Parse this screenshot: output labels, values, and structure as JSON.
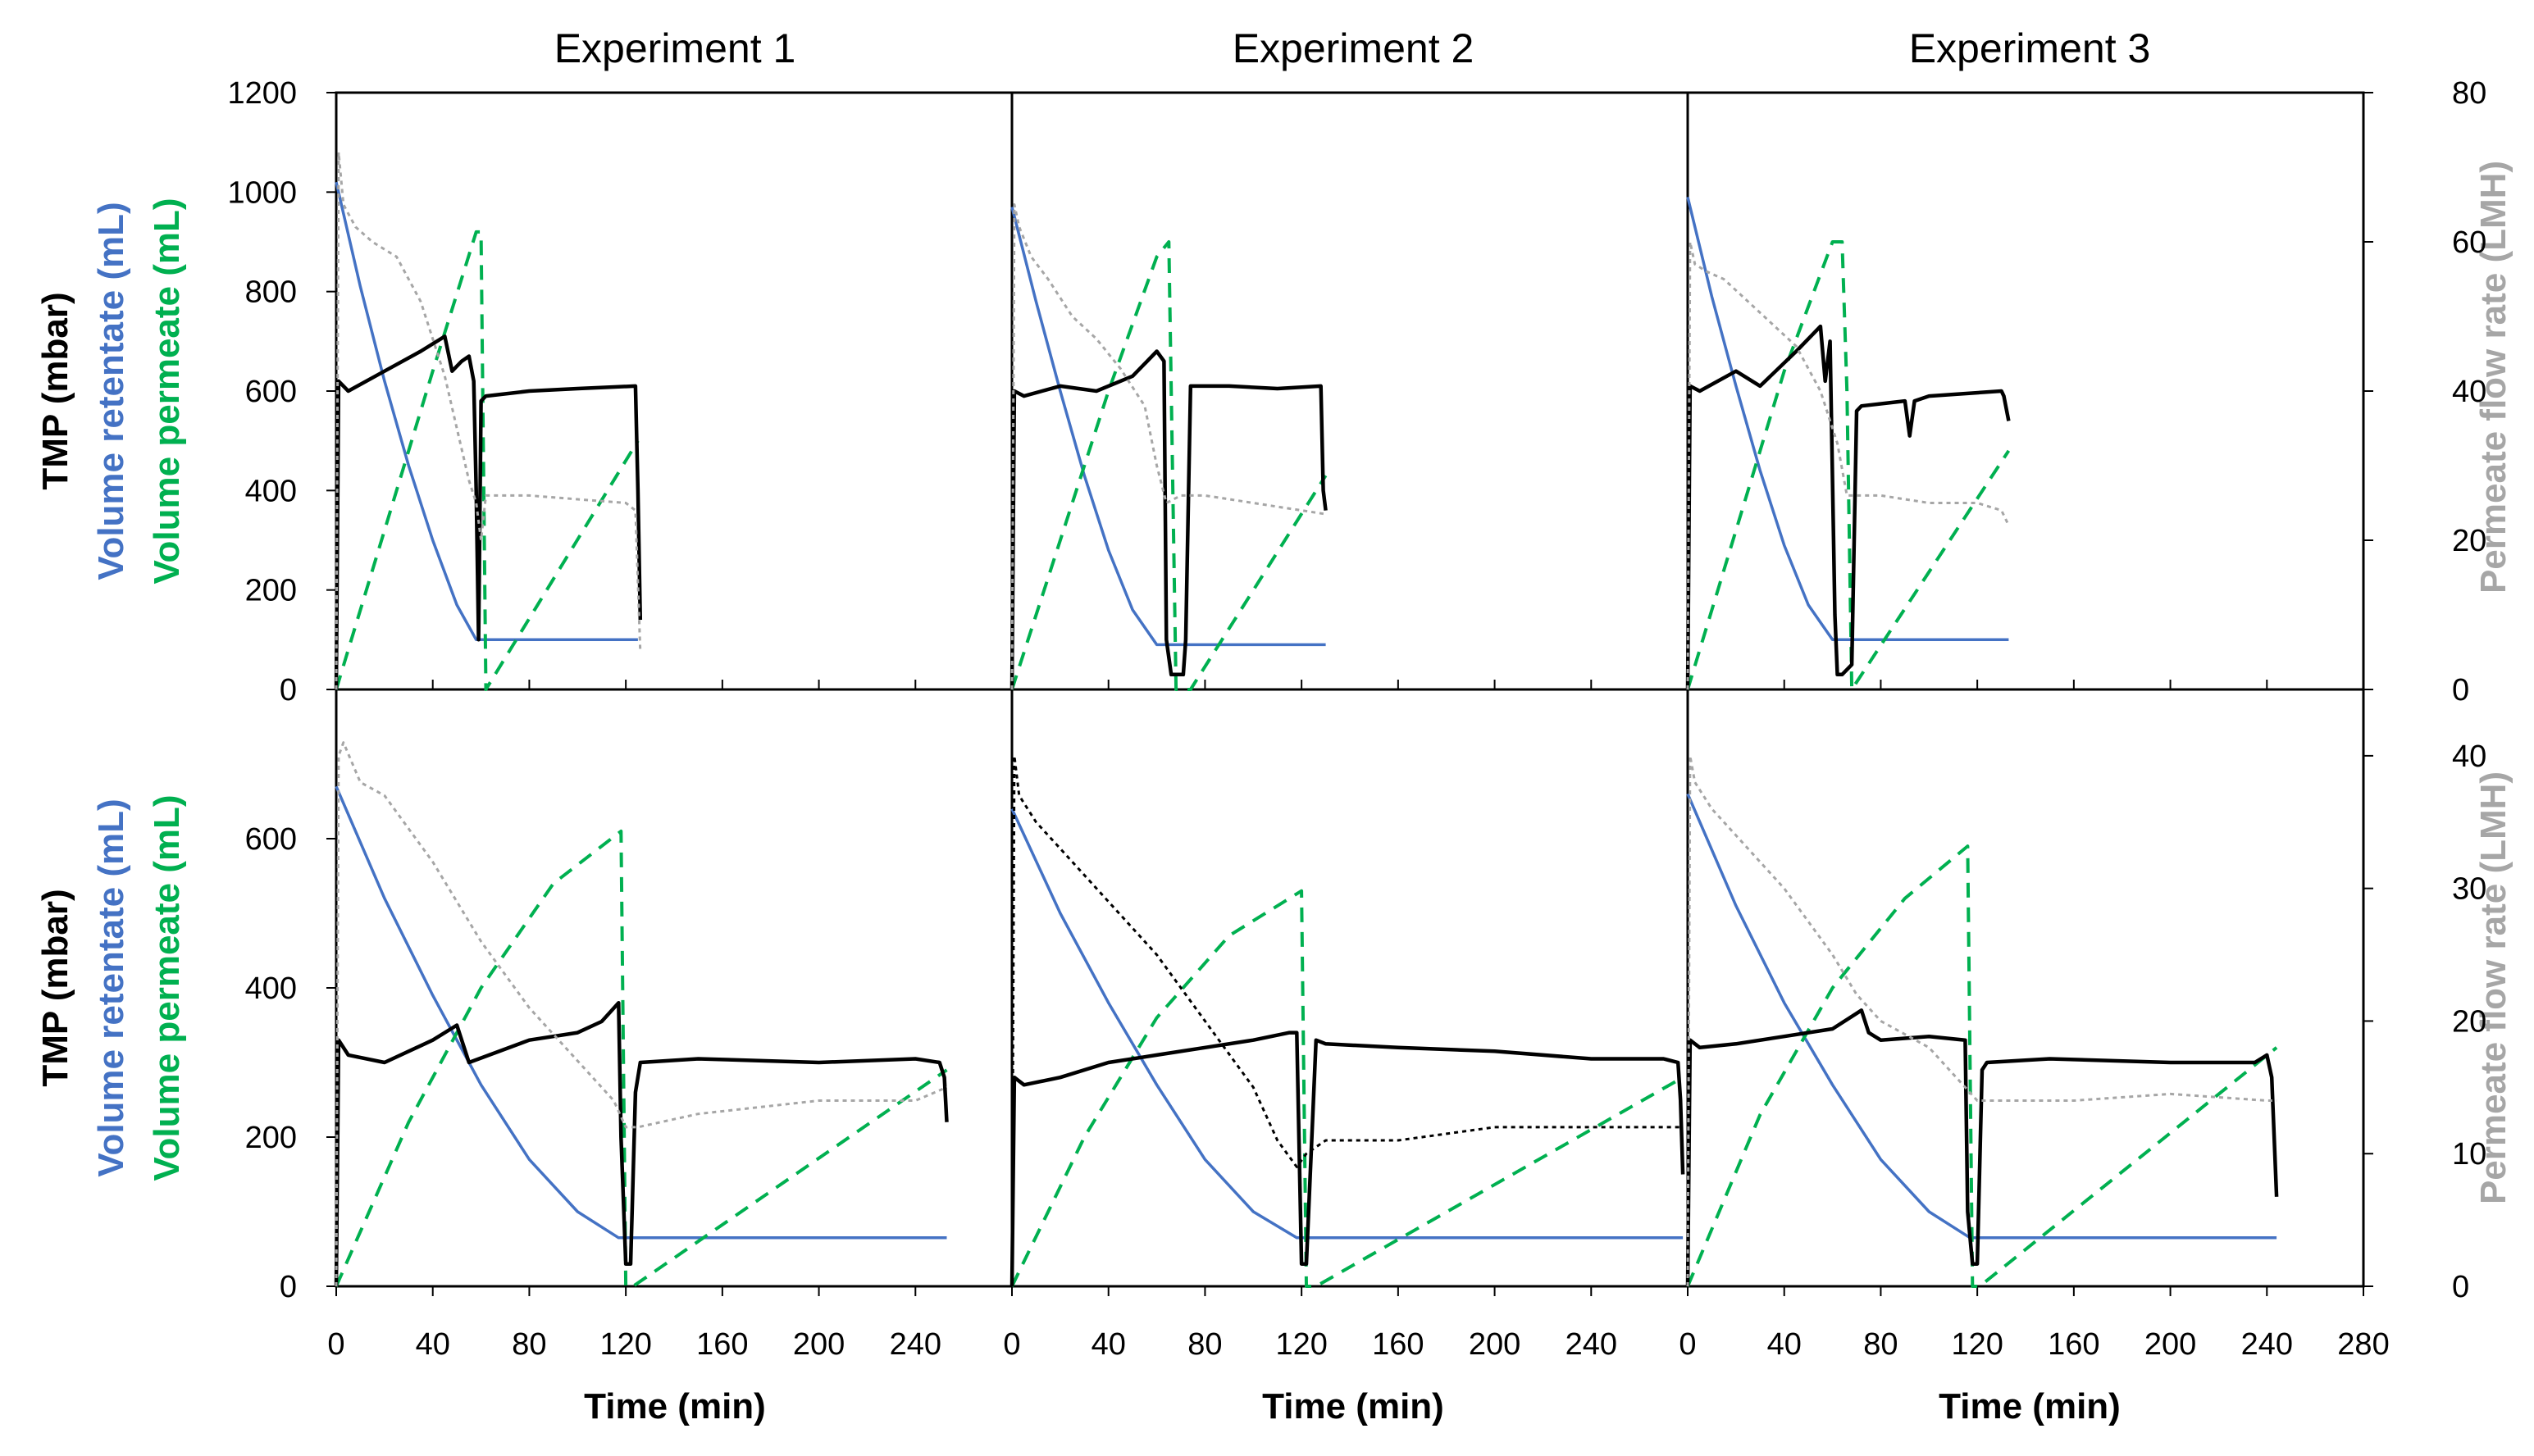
{
  "colors": {
    "tmp": "#000000",
    "retentate": "#4472C4",
    "permeate_volume": "#00B050",
    "flow_rate": "#A6A6A6"
  },
  "chart_data": {
    "type": "line",
    "layout": "2x3 grid",
    "column_titles": [
      "Experiment 1",
      "Experiment 2",
      "Experiment 3"
    ],
    "xlabel": "Time (min)",
    "xlim": [
      0,
      280
    ],
    "xticks": [
      0,
      40,
      80,
      120,
      160,
      200,
      240,
      280
    ],
    "xtick_labels": [
      "0",
      "40",
      "80",
      "120",
      "160",
      "200",
      "240"
    ],
    "last_xtick_label": "280",
    "rows": [
      {
        "name": "top",
        "ylabel_left": {
          "tmp": "TMP (mbar)",
          "retentate": "Volume retentate (mL)",
          "permeate": "Volume permeate (mL)"
        },
        "ylim_left": [
          0,
          1200
        ],
        "yticks_left": [
          "0",
          "200",
          "400",
          "600",
          "800",
          "1000",
          "1200"
        ],
        "ylabel_right": "Permeate flow rate (LMH)",
        "ylim_right": [
          0,
          80
        ],
        "yticks_right": [
          "0",
          "20",
          "40",
          "60",
          "80"
        ]
      },
      {
        "name": "bottom",
        "ylabel_left": {
          "tmp": "TMP (mbar)",
          "retentate": "Volume retentate (mL)",
          "permeate": "Volume permeate (mL)"
        },
        "ylim_left": [
          0,
          800
        ],
        "yticks_left": [
          "0",
          "200",
          "400",
          "600"
        ],
        "ylabel_right": "Permeate flow rate (LMH)",
        "ylim_right": [
          0,
          45
        ],
        "yticks_right": [
          "0",
          "10",
          "20",
          "30",
          "40"
        ]
      }
    ],
    "panels": [
      {
        "row": 0,
        "col": 0,
        "series": [
          {
            "name": "Volume retentate",
            "axis": "left",
            "style": "solid-blue",
            "x": [
              0,
              10,
              20,
              30,
              40,
              50,
              58,
              60,
              125
            ],
            "y": [
              1020,
              810,
              620,
              450,
              300,
              170,
              100,
              100,
              100
            ]
          },
          {
            "name": "Volume permeate",
            "axis": "left",
            "style": "dashed-green",
            "x": [
              0,
              20,
              40,
              58,
              60,
              62,
              125
            ],
            "y": [
              0,
              320,
              640,
              920,
              920,
              0,
              500
            ]
          },
          {
            "name": "TMP",
            "axis": "left",
            "style": "solid-black",
            "x": [
              0,
              1,
              5,
              20,
              35,
              45,
              48,
              52,
              55,
              57,
              58,
              59,
              60,
              62,
              80,
              100,
              124,
              125,
              126
            ],
            "y": [
              0,
              620,
              600,
              640,
              680,
              710,
              640,
              660,
              670,
              620,
              400,
              100,
              580,
              590,
              600,
              605,
              610,
              400,
              140
            ]
          },
          {
            "name": "Permeate flow rate",
            "axis": "right",
            "style": "dotted-gray",
            "x": [
              0,
              1,
              3,
              8,
              15,
              25,
              35,
              45,
              50,
              55,
              58,
              60,
              62,
              80,
              100,
              120,
              124,
              126
            ],
            "y": [
              0,
              72,
              65,
              62,
              60,
              58,
              52,
              42,
              35,
              28,
              25,
              20,
              26,
              26,
              25.5,
              25,
              24,
              5
            ]
          }
        ]
      },
      {
        "row": 0,
        "col": 1,
        "series": [
          {
            "name": "Volume retentate",
            "axis": "left",
            "style": "solid-blue",
            "x": [
              0,
              10,
              20,
              30,
              40,
              50,
              60,
              65,
              130
            ],
            "y": [
              970,
              780,
              600,
              430,
              280,
              160,
              90,
              90,
              90
            ]
          },
          {
            "name": "Volume permeate",
            "axis": "left",
            "style": "dashed-green",
            "x": [
              0,
              20,
              40,
              60,
              65,
              68,
              74,
              130
            ],
            "y": [
              0,
              300,
              600,
              870,
              900,
              0,
              0,
              430
            ]
          },
          {
            "name": "TMP",
            "axis": "left",
            "style": "solid-black",
            "x": [
              0,
              1,
              5,
              20,
              35,
              50,
              60,
              63,
              64,
              66,
              71,
              72,
              74,
              90,
              110,
              128,
              129,
              130
            ],
            "y": [
              0,
              600,
              590,
              610,
              600,
              630,
              680,
              660,
              100,
              30,
              30,
              100,
              610,
              610,
              605,
              610,
              400,
              360
            ]
          },
          {
            "name": "Permeate flow rate",
            "axis": "right",
            "style": "dotted-gray",
            "x": [
              0,
              1,
              3,
              8,
              15,
              25,
              35,
              45,
              55,
              60,
              64,
              70,
              80,
              100,
              120,
              130
            ],
            "y": [
              0,
              65,
              62,
              58,
              55,
              50,
              47,
              43,
              38,
              30,
              25,
              26,
              26,
              25,
              24,
              23.5
            ]
          }
        ]
      },
      {
        "row": 0,
        "col": 2,
        "series": [
          {
            "name": "Volume retentate",
            "axis": "left",
            "style": "solid-blue",
            "x": [
              0,
              10,
              20,
              30,
              40,
              50,
              60,
              64,
              133
            ],
            "y": [
              990,
              790,
              610,
              440,
              290,
              170,
              100,
              100,
              100
            ]
          },
          {
            "name": "Volume permeate",
            "axis": "left",
            "style": "dashed-green",
            "x": [
              0,
              20,
              40,
              60,
              64,
              66,
              68,
              133
            ],
            "y": [
              0,
              320,
              640,
              900,
              900,
              600,
              0,
              480
            ]
          },
          {
            "name": "TMP",
            "axis": "left",
            "style": "solid-black",
            "x": [
              0,
              1,
              5,
              20,
              30,
              45,
              55,
              57,
              59,
              61,
              62,
              64,
              68,
              70,
              72,
              90,
              92,
              94,
              100,
              130,
              131,
              133
            ],
            "y": [
              0,
              610,
              600,
              640,
              610,
              680,
              730,
              620,
              700,
              150,
              30,
              30,
              50,
              560,
              570,
              580,
              510,
              580,
              590,
              600,
              590,
              540
            ]
          },
          {
            "name": "Permeate flow rate",
            "axis": "right",
            "style": "dotted-gray",
            "x": [
              0,
              1,
              3,
              8,
              15,
              25,
              35,
              45,
              55,
              62,
              66,
              80,
              100,
              120,
              130,
              133
            ],
            "y": [
              0,
              60,
              57,
              56,
              55,
              52,
              49,
              46,
              40,
              33,
              26,
              26,
              25,
              25,
              24,
              22
            ]
          }
        ]
      },
      {
        "row": 1,
        "col": 0,
        "series": [
          {
            "name": "Volume retentate",
            "axis": "left",
            "style": "solid-blue",
            "x": [
              0,
              20,
              40,
              60,
              80,
              100,
              117,
              120,
              253
            ],
            "y": [
              670,
              520,
              390,
              270,
              170,
              100,
              65,
              65,
              65
            ]
          },
          {
            "name": "Volume permeate",
            "axis": "left",
            "style": "dashed-green",
            "x": [
              0,
              30,
              60,
              90,
              118,
              120,
              123,
              253
            ],
            "y": [
              0,
              220,
              400,
              540,
              610,
              0,
              0,
              290
            ]
          },
          {
            "name": "TMP",
            "axis": "left",
            "style": "solid-black",
            "x": [
              0,
              1,
              5,
              20,
              40,
              50,
              55,
              80,
              100,
              110,
              117,
              118,
              120,
              122,
              124,
              126,
              150,
              200,
              240,
              250,
              252,
              253
            ],
            "y": [
              0,
              330,
              310,
              300,
              330,
              350,
              300,
              330,
              340,
              355,
              380,
              200,
              30,
              30,
              260,
              300,
              305,
              300,
              305,
              300,
              280,
              220
            ]
          },
          {
            "name": "Permeate flow rate",
            "axis": "right",
            "style": "dotted-gray",
            "x": [
              0,
              1,
              3,
              10,
              20,
              40,
              60,
              80,
              100,
              115,
              120,
              125,
              150,
              200,
              240,
              253
            ],
            "y": [
              0,
              40,
              41,
              38,
              37,
              32,
              26,
              21,
              17,
              14,
              12,
              12,
              13,
              14,
              14,
              15
            ]
          }
        ]
      },
      {
        "row": 1,
        "col": 1,
        "series": [
          {
            "name": "Volume retentate",
            "axis": "left",
            "style": "solid-blue",
            "x": [
              0,
              20,
              40,
              60,
              80,
              100,
              118,
              122,
              278
            ],
            "y": [
              640,
              500,
              380,
              270,
              170,
              100,
              65,
              65,
              65
            ]
          },
          {
            "name": "Volume permeate",
            "axis": "left",
            "style": "dashed-green",
            "x": [
              0,
              30,
              60,
              90,
              120,
              122,
              126,
              278
            ],
            "y": [
              0,
              200,
              360,
              470,
              530,
              0,
              0,
              280
            ]
          },
          {
            "name": "TMP",
            "axis": "left",
            "style": "solid-black",
            "x": [
              0,
              1,
              5,
              20,
              40,
              60,
              80,
              100,
              115,
              118,
              120,
              122,
              126,
              130,
              160,
              200,
              240,
              270,
              276,
              277,
              278
            ],
            "y": [
              0,
              280,
              270,
              280,
              300,
              310,
              320,
              330,
              340,
              340,
              30,
              30,
              330,
              325,
              320,
              315,
              305,
              305,
              300,
              250,
              150
            ]
          },
          {
            "name": "Permeate flow rate",
            "axis": "right",
            "style": "dotted-black",
            "x": [
              0,
              1,
              3,
              10,
              20,
              40,
              60,
              80,
              100,
              110,
              118,
              122,
              130,
              160,
              200,
              240,
              270,
              278
            ],
            "y": [
              0,
              40,
              37,
              35,
              33,
              29,
              25,
              20,
              15,
              11,
              9,
              10,
              11,
              11,
              12,
              12,
              12,
              12
            ]
          }
        ]
      },
      {
        "row": 1,
        "col": 2,
        "series": [
          {
            "name": "Volume retentate",
            "axis": "left",
            "style": "solid-blue",
            "x": [
              0,
              20,
              40,
              60,
              80,
              100,
              117,
              120,
              244
            ],
            "y": [
              660,
              510,
              380,
              270,
              170,
              100,
              65,
              65,
              65
            ]
          },
          {
            "name": "Volume permeate",
            "axis": "left",
            "style": "dashed-green",
            "x": [
              0,
              30,
              60,
              90,
              116,
              118,
              121,
              244
            ],
            "y": [
              0,
              230,
              400,
              520,
              590,
              0,
              0,
              320
            ]
          },
          {
            "name": "TMP",
            "axis": "left",
            "style": "solid-black",
            "x": [
              0,
              1,
              5,
              20,
              40,
              60,
              72,
              75,
              80,
              100,
              115,
              116,
              118,
              120,
              122,
              124,
              150,
              200,
              235,
              240,
              242,
              244
            ],
            "y": [
              0,
              330,
              320,
              325,
              335,
              345,
              370,
              340,
              330,
              335,
              330,
              100,
              30,
              30,
              290,
              300,
              305,
              300,
              300,
              310,
              280,
              120
            ]
          },
          {
            "name": "Permeate flow rate",
            "axis": "right",
            "style": "dotted-gray",
            "x": [
              0,
              1,
              3,
              10,
              20,
              40,
              60,
              70,
              80,
              100,
              115,
              120,
              130,
              160,
              200,
              240,
              244
            ],
            "y": [
              0,
              40,
              38,
              36,
              34,
              30,
              25,
              22,
              20,
              18,
              15,
              14,
              14,
              14,
              14.5,
              14,
              14
            ]
          }
        ]
      }
    ]
  }
}
